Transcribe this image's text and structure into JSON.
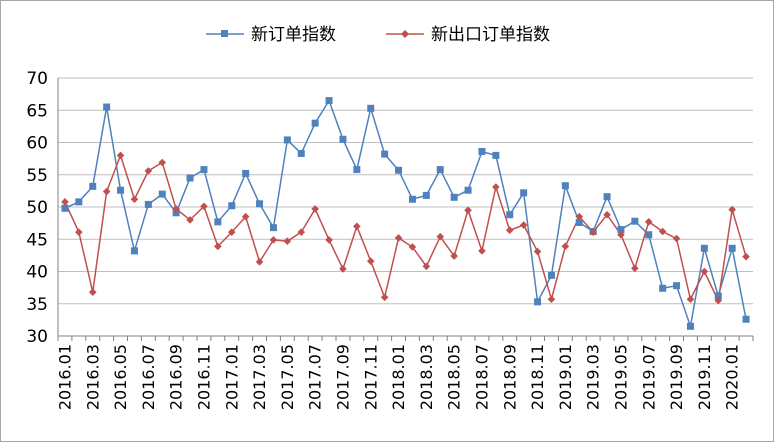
{
  "chart_data": {
    "type": "line",
    "title": "",
    "xlabel": "",
    "ylabel": "",
    "ylim": [
      30,
      70
    ],
    "yticks": [
      "30",
      "35",
      "40",
      "45",
      "50",
      "55",
      "60",
      "65",
      "70"
    ],
    "grid": true,
    "legend_position": "top",
    "x": [
      "2016.01",
      "2016.02",
      "2016.03",
      "2016.04",
      "2016.05",
      "2016.06",
      "2016.07",
      "2016.08",
      "2016.09",
      "2016.10",
      "2016.11",
      "2016.12",
      "2017.01",
      "2017.02",
      "2017.03",
      "2017.04",
      "2017.05",
      "2017.06",
      "2017.07",
      "2017.08",
      "2017.09",
      "2017.10",
      "2017.11",
      "2017.12",
      "2018.01",
      "2018.02",
      "2018.03",
      "2018.04",
      "2018.05",
      "2018.06",
      "2018.07",
      "2018.08",
      "2018.09",
      "2018.10",
      "2018.11",
      "2018.12",
      "2019.01",
      "2019.02",
      "2019.03",
      "2019.04",
      "2019.05",
      "2019.06",
      "2019.07",
      "2019.08",
      "2019.09",
      "2019.10",
      "2019.11",
      "2019.12",
      "2020.01",
      "2020.02"
    ],
    "x_tick_labels": [
      "2016.01",
      "2016.03",
      "2016.05",
      "2016.07",
      "2016.09",
      "2016.11",
      "2017.01",
      "2017.03",
      "2017.05",
      "2017.07",
      "2017.09",
      "2017.11",
      "2018.01",
      "2018.03",
      "2018.05",
      "2018.07",
      "2018.09",
      "2018.11",
      "2019.01",
      "2019.03",
      "2019.05",
      "2019.07",
      "2019.09",
      "2019.11",
      "2020.01"
    ],
    "series": [
      {
        "name": "新订单指数",
        "color": "#4f81bd",
        "marker": "square",
        "values": [
          49.8,
          50.8,
          53.2,
          65.5,
          52.6,
          43.2,
          50.4,
          52.0,
          49.1,
          54.5,
          55.8,
          47.7,
          50.2,
          55.2,
          50.5,
          46.8,
          60.4,
          58.3,
          63.0,
          66.5,
          60.5,
          55.8,
          65.3,
          58.2,
          55.7,
          51.2,
          51.8,
          55.8,
          51.5,
          52.6,
          58.6,
          58.0,
          48.8,
          52.2,
          35.3,
          39.4,
          53.3,
          47.6,
          46.2,
          51.6,
          46.5,
          47.8,
          45.7,
          37.4,
          37.8,
          31.5,
          43.6,
          36.2,
          43.6,
          32.6
        ]
      },
      {
        "name": "新出口订单指数",
        "color": "#c0504d",
        "marker": "diamond",
        "values": [
          50.8,
          46.1,
          36.8,
          52.4,
          58.0,
          51.2,
          55.6,
          56.9,
          49.7,
          48.0,
          50.1,
          43.9,
          46.1,
          48.5,
          41.5,
          44.9,
          44.7,
          46.1,
          49.7,
          44.9,
          40.4,
          47.0,
          41.6,
          36.0,
          45.2,
          43.8,
          40.8,
          45.4,
          42.4,
          49.5,
          43.2,
          53.1,
          46.4,
          47.2,
          43.1,
          35.7,
          43.9,
          48.5,
          46.1,
          48.8,
          45.7,
          40.5,
          47.7,
          46.2,
          45.1,
          35.7,
          40.0,
          35.5,
          49.6,
          42.3
        ]
      }
    ]
  }
}
